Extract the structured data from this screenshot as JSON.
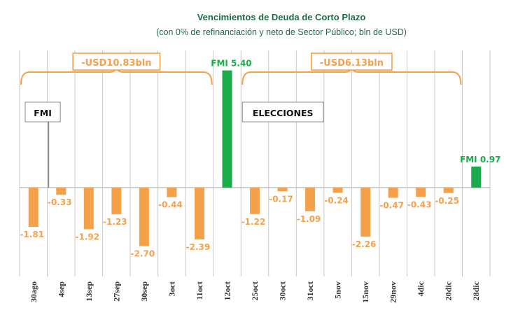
{
  "chart_data": {
    "type": "bar",
    "title": "Vencimientos de Deuda de Corto Plazo",
    "subtitle": "(con 0% de refinanciación y neto de Sector Público; bln de USD)",
    "categories": [
      "30ago",
      "4sep",
      "13sep",
      "27sep",
      "30sep",
      "3oct",
      "11oct",
      "12oct",
      "25oct",
      "30oct",
      "31oct",
      "5nov",
      "15nov",
      "29nov",
      "4dic",
      "20dic",
      "28dic"
    ],
    "values": [
      -1.81,
      -0.33,
      -1.92,
      -1.23,
      -2.7,
      -0.44,
      -2.39,
      5.4,
      -1.22,
      -0.17,
      -1.09,
      -0.24,
      -2.26,
      -0.47,
      -0.43,
      -0.25,
      0.97
    ],
    "value_labels": [
      "-1.81",
      "-0.33",
      "-1.92",
      "-1.23",
      "-2.70",
      "-0.44",
      "-2.39",
      "FMI 5.40",
      "-1.22",
      "-0.17",
      "-1.09",
      "-0.24",
      "-2.26",
      "-0.47",
      "-0.43",
      "-0.25",
      "FMI 0.97"
    ],
    "colors": {
      "negative": "#f5a04b",
      "positive": "#1aab4b",
      "grid": "#c8c8c8",
      "brace": "#f5a04b"
    },
    "grid": true,
    "brace_groups": [
      {
        "label": "-USD10.83bln",
        "from": 0,
        "to": 6
      },
      {
        "label": "-USD6.13bln",
        "from": 8,
        "to": 15
      }
    ],
    "annotations": [
      {
        "label": "FMI",
        "at_category": 1
      },
      {
        "label": "ELECCIONES",
        "at_category": 8
      }
    ],
    "ylim": [
      -3.5,
      5.6
    ]
  }
}
